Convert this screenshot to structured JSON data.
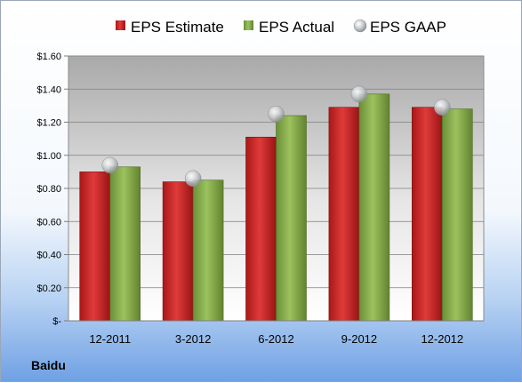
{
  "company_label": "Baidu",
  "chart_data": {
    "type": "bar",
    "title": "",
    "xlabel": "",
    "ylabel": "",
    "categories": [
      "12-2011",
      "3-2012",
      "6-2012",
      "9-2012",
      "12-2012"
    ],
    "series": [
      {
        "name": "EPS Estimate",
        "kind": "bar",
        "color": "#d42a2a",
        "values": [
          0.9,
          0.84,
          1.11,
          1.29,
          1.29
        ]
      },
      {
        "name": "EPS Actual",
        "kind": "bar",
        "color": "#8db352",
        "values": [
          0.93,
          0.85,
          1.24,
          1.37,
          1.28
        ]
      },
      {
        "name": "EPS GAAP",
        "kind": "marker",
        "color": "#c0c4c8",
        "values": [
          0.94,
          0.86,
          1.25,
          1.37,
          1.29
        ]
      }
    ],
    "ylim": [
      0,
      1.6
    ],
    "yticks": [
      "$-",
      "$0.20",
      "$0.40",
      "$0.60",
      "$0.80",
      "$1.00",
      "$1.20",
      "$1.40",
      "$1.60"
    ],
    "legend_position": "top",
    "grid": true
  }
}
